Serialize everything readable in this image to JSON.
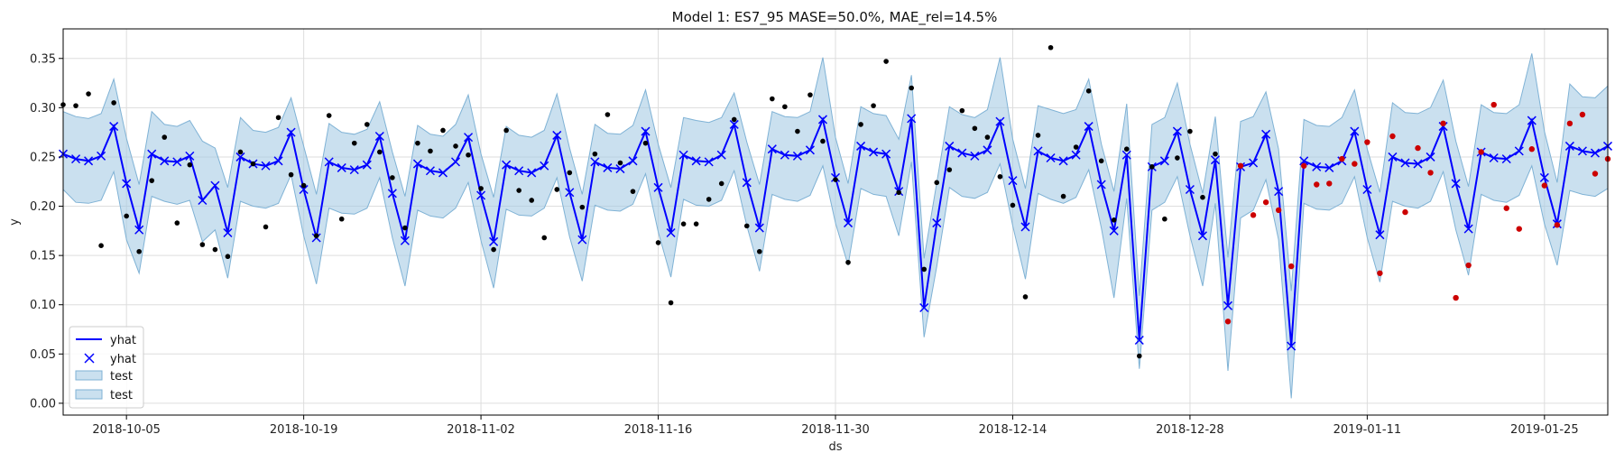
{
  "chart_data": {
    "type": "line",
    "title": "Model 1: ES7_95 MASE=50.0%, MAE_rel=14.5%",
    "xlabel": "ds",
    "ylabel": "y",
    "x_start": "2018-09-30",
    "x_end": "2019-01-30",
    "ylim": [
      -0.012,
      0.38
    ],
    "yticks": [
      0.0,
      0.05,
      0.1,
      0.15,
      0.2,
      0.25,
      0.3,
      0.35
    ],
    "ytick_labels": [
      "0.00",
      "0.05",
      "0.10",
      "0.15",
      "0.20",
      "0.25",
      "0.30",
      "0.35"
    ],
    "xticks": [
      "2018-10-05",
      "2018-10-19",
      "2018-11-02",
      "2018-11-16",
      "2018-11-30",
      "2018-12-14",
      "2018-12-28",
      "2019-01-11",
      "2019-01-25"
    ],
    "grid": true,
    "legend_position": "lower-left",
    "legend": [
      {
        "label": "yhat",
        "kind": "line"
      },
      {
        "label": "yhat",
        "kind": "marker"
      },
      {
        "label": "test",
        "kind": "band"
      },
      {
        "label": "test",
        "kind": "band"
      }
    ],
    "colors": {
      "line": "#0000ff",
      "band_fill": "#a6cce4",
      "band_edge": "#7fb2d5",
      "actual": "#000000",
      "test_point": "#cc0000",
      "grid": "#dddddd"
    },
    "forecast": {
      "name": "yhat",
      "x_start": "2018-09-30",
      "values": [
        0.253,
        0.248,
        0.246,
        0.251,
        0.281,
        0.223,
        0.176,
        0.253,
        0.246,
        0.245,
        0.251,
        0.206,
        0.221,
        0.173,
        0.25,
        0.243,
        0.241,
        0.246,
        0.275,
        0.217,
        0.168,
        0.245,
        0.239,
        0.237,
        0.242,
        0.271,
        0.213,
        0.165,
        0.243,
        0.236,
        0.234,
        0.245,
        0.27,
        0.211,
        0.164,
        0.242,
        0.236,
        0.234,
        0.241,
        0.272,
        0.214,
        0.166,
        0.245,
        0.239,
        0.238,
        0.246,
        0.276,
        0.219,
        0.173,
        0.252,
        0.246,
        0.245,
        0.252,
        0.283,
        0.224,
        0.178,
        0.258,
        0.252,
        0.251,
        0.257,
        0.288,
        0.229,
        0.183,
        0.261,
        0.255,
        0.253,
        0.215,
        0.289,
        0.097,
        0.183,
        0.261,
        0.254,
        0.251,
        0.257,
        0.286,
        0.226,
        0.179,
        0.256,
        0.249,
        0.246,
        0.252,
        0.281,
        0.222,
        0.175,
        0.252,
        0.064,
        0.24,
        0.246,
        0.276,
        0.217,
        0.17,
        0.247,
        0.099,
        0.24,
        0.244,
        0.273,
        0.215,
        0.058,
        0.246,
        0.24,
        0.239,
        0.246,
        0.276,
        0.217,
        0.171,
        0.25,
        0.244,
        0.243,
        0.25,
        0.281,
        0.223,
        0.177,
        0.255,
        0.249,
        0.248,
        0.256,
        0.287,
        0.229,
        0.182,
        0.261,
        0.256,
        0.254,
        0.261
      ]
    },
    "band": {
      "name": "test",
      "upper": [
        0.296,
        0.291,
        0.289,
        0.294,
        0.329,
        0.269,
        0.222,
        0.296,
        0.283,
        0.281,
        0.287,
        0.266,
        0.259,
        0.219,
        0.29,
        0.277,
        0.275,
        0.28,
        0.31,
        0.261,
        0.212,
        0.284,
        0.275,
        0.273,
        0.278,
        0.306,
        0.255,
        0.21,
        0.282,
        0.273,
        0.271,
        0.283,
        0.313,
        0.253,
        0.209,
        0.281,
        0.272,
        0.27,
        0.277,
        0.314,
        0.259,
        0.212,
        0.283,
        0.274,
        0.273,
        0.282,
        0.318,
        0.263,
        0.219,
        0.29,
        0.287,
        0.285,
        0.29,
        0.315,
        0.265,
        0.222,
        0.296,
        0.291,
        0.29,
        0.296,
        0.351,
        0.27,
        0.223,
        0.301,
        0.294,
        0.292,
        0.268,
        0.333,
        0.147,
        0.224,
        0.301,
        0.293,
        0.29,
        0.298,
        0.351,
        0.268,
        0.218,
        0.302,
        0.298,
        0.294,
        0.298,
        0.329,
        0.263,
        0.215,
        0.304,
        0.109,
        0.283,
        0.29,
        0.325,
        0.263,
        0.213,
        0.291,
        0.148,
        0.286,
        0.291,
        0.316,
        0.258,
        0.114,
        0.288,
        0.282,
        0.281,
        0.29,
        0.318,
        0.258,
        0.214,
        0.305,
        0.295,
        0.294,
        0.3,
        0.328,
        0.266,
        0.22,
        0.303,
        0.295,
        0.294,
        0.303,
        0.355,
        0.276,
        0.224,
        0.324,
        0.311,
        0.31,
        0.322
      ],
      "lower": [
        0.217,
        0.204,
        0.203,
        0.206,
        0.235,
        0.166,
        0.132,
        0.21,
        0.205,
        0.202,
        0.206,
        0.164,
        0.176,
        0.127,
        0.205,
        0.2,
        0.198,
        0.203,
        0.232,
        0.17,
        0.121,
        0.198,
        0.193,
        0.192,
        0.198,
        0.229,
        0.168,
        0.119,
        0.196,
        0.19,
        0.188,
        0.198,
        0.224,
        0.165,
        0.117,
        0.197,
        0.191,
        0.19,
        0.198,
        0.229,
        0.169,
        0.124,
        0.201,
        0.196,
        0.195,
        0.202,
        0.233,
        0.174,
        0.128,
        0.207,
        0.201,
        0.2,
        0.206,
        0.236,
        0.18,
        0.134,
        0.212,
        0.207,
        0.205,
        0.211,
        0.241,
        0.183,
        0.14,
        0.218,
        0.212,
        0.21,
        0.17,
        0.245,
        0.067,
        0.139,
        0.219,
        0.21,
        0.208,
        0.214,
        0.243,
        0.18,
        0.126,
        0.213,
        0.207,
        0.203,
        0.209,
        0.237,
        0.178,
        0.107,
        0.208,
        0.035,
        0.196,
        0.204,
        0.23,
        0.17,
        0.119,
        0.203,
        0.033,
        0.188,
        0.196,
        0.227,
        0.166,
        0.005,
        0.203,
        0.197,
        0.196,
        0.203,
        0.23,
        0.168,
        0.123,
        0.205,
        0.2,
        0.198,
        0.205,
        0.235,
        0.176,
        0.13,
        0.212,
        0.206,
        0.204,
        0.211,
        0.241,
        0.182,
        0.14,
        0.216,
        0.212,
        0.21,
        0.218
      ]
    },
    "actual": {
      "name": "actual",
      "points": [
        [
          "2018-09-30",
          0.303
        ],
        [
          "2018-10-01",
          0.302
        ],
        [
          "2018-10-02",
          0.314
        ],
        [
          "2018-10-03",
          0.16
        ],
        [
          "2018-10-04",
          0.305
        ],
        [
          "2018-10-05",
          0.19
        ],
        [
          "2018-10-06",
          0.154
        ],
        [
          "2018-10-07",
          0.226
        ],
        [
          "2018-10-08",
          0.27
        ],
        [
          "2018-10-09",
          0.183
        ],
        [
          "2018-10-10",
          0.242
        ],
        [
          "2018-10-11",
          0.161
        ],
        [
          "2018-10-12",
          0.156
        ],
        [
          "2018-10-13",
          0.149
        ],
        [
          "2018-10-14",
          0.255
        ],
        [
          "2018-10-15",
          0.243
        ],
        [
          "2018-10-16",
          0.179
        ],
        [
          "2018-10-17",
          0.29
        ],
        [
          "2018-10-18",
          0.232
        ],
        [
          "2018-10-19",
          0.221
        ],
        [
          "2018-10-20",
          0.17
        ],
        [
          "2018-10-21",
          0.292
        ],
        [
          "2018-10-22",
          0.187
        ],
        [
          "2018-10-23",
          0.264
        ],
        [
          "2018-10-24",
          0.283
        ],
        [
          "2018-10-25",
          0.255
        ],
        [
          "2018-10-26",
          0.229
        ],
        [
          "2018-10-27",
          0.178
        ],
        [
          "2018-10-28",
          0.264
        ],
        [
          "2018-10-29",
          0.256
        ],
        [
          "2018-10-30",
          0.277
        ],
        [
          "2018-10-31",
          0.261
        ],
        [
          "2018-11-01",
          0.252
        ],
        [
          "2018-11-02",
          0.218
        ],
        [
          "2018-11-03",
          0.156
        ],
        [
          "2018-11-04",
          0.277
        ],
        [
          "2018-11-05",
          0.216
        ],
        [
          "2018-11-06",
          0.206
        ],
        [
          "2018-11-07",
          0.168
        ],
        [
          "2018-11-08",
          0.217
        ],
        [
          "2018-11-09",
          0.234
        ],
        [
          "2018-11-10",
          0.199
        ],
        [
          "2018-11-11",
          0.253
        ],
        [
          "2018-11-12",
          0.293
        ],
        [
          "2018-11-13",
          0.244
        ],
        [
          "2018-11-14",
          0.215
        ],
        [
          "2018-11-15",
          0.264
        ],
        [
          "2018-11-16",
          0.163
        ],
        [
          "2018-11-17",
          0.102
        ],
        [
          "2018-11-18",
          0.182
        ],
        [
          "2018-11-19",
          0.182
        ],
        [
          "2018-11-20",
          0.207
        ],
        [
          "2018-11-21",
          0.223
        ],
        [
          "2018-11-22",
          0.288
        ],
        [
          "2018-11-23",
          0.18
        ],
        [
          "2018-11-24",
          0.154
        ],
        [
          "2018-11-25",
          0.309
        ],
        [
          "2018-11-26",
          0.301
        ],
        [
          "2018-11-27",
          0.276
        ],
        [
          "2018-11-28",
          0.313
        ],
        [
          "2018-11-29",
          0.266
        ],
        [
          "2018-11-30",
          0.227
        ],
        [
          "2018-12-01",
          0.143
        ],
        [
          "2018-12-02",
          0.283
        ],
        [
          "2018-12-03",
          0.302
        ],
        [
          "2018-12-04",
          0.347
        ],
        [
          "2018-12-05",
          0.214
        ],
        [
          "2018-12-06",
          0.32
        ],
        [
          "2018-12-07",
          0.136
        ],
        [
          "2018-12-08",
          0.224
        ],
        [
          "2018-12-09",
          0.237
        ],
        [
          "2018-12-10",
          0.297
        ],
        [
          "2018-12-11",
          0.279
        ],
        [
          "2018-12-12",
          0.27
        ],
        [
          "2018-12-13",
          0.23
        ],
        [
          "2018-12-14",
          0.201
        ],
        [
          "2018-12-15",
          0.108
        ],
        [
          "2018-12-16",
          0.272
        ],
        [
          "2018-12-17",
          0.361
        ],
        [
          "2018-12-18",
          0.21
        ],
        [
          "2018-12-19",
          0.26
        ],
        [
          "2018-12-20",
          0.317
        ],
        [
          "2018-12-21",
          0.246
        ],
        [
          "2018-12-22",
          0.186
        ],
        [
          "2018-12-23",
          0.258
        ],
        [
          "2018-12-24",
          0.048
        ],
        [
          "2018-12-25",
          0.24
        ],
        [
          "2018-12-26",
          0.187
        ],
        [
          "2018-12-27",
          0.249
        ],
        [
          "2018-12-28",
          0.276
        ],
        [
          "2018-12-29",
          0.209
        ],
        [
          "2018-12-30",
          0.253
        ]
      ]
    },
    "test_points": {
      "name": "test",
      "points": [
        [
          "2018-12-31",
          0.083
        ],
        [
          "2019-01-01",
          0.241
        ],
        [
          "2019-01-02",
          0.191
        ],
        [
          "2019-01-03",
          0.204
        ],
        [
          "2019-01-04",
          0.196
        ],
        [
          "2019-01-05",
          0.139
        ],
        [
          "2019-01-06",
          0.241
        ],
        [
          "2019-01-07",
          0.222
        ],
        [
          "2019-01-08",
          0.223
        ],
        [
          "2019-01-09",
          0.248
        ],
        [
          "2019-01-10",
          0.243
        ],
        [
          "2019-01-11",
          0.265
        ],
        [
          "2019-01-12",
          0.132
        ],
        [
          "2019-01-13",
          0.271
        ],
        [
          "2019-01-14",
          0.194
        ],
        [
          "2019-01-15",
          0.259
        ],
        [
          "2019-01-16",
          0.234
        ],
        [
          "2019-01-17",
          0.284
        ],
        [
          "2019-01-18",
          0.107
        ],
        [
          "2019-01-19",
          0.14
        ],
        [
          "2019-01-20",
          0.255
        ],
        [
          "2019-01-21",
          0.303
        ],
        [
          "2019-01-22",
          0.198
        ],
        [
          "2019-01-23",
          0.177
        ],
        [
          "2019-01-24",
          0.258
        ],
        [
          "2019-01-25",
          0.221
        ],
        [
          "2019-01-26",
          0.181
        ],
        [
          "2019-01-27",
          0.284
        ],
        [
          "2019-01-28",
          0.293
        ],
        [
          "2019-01-29",
          0.233
        ],
        [
          "2019-01-30",
          0.248
        ]
      ]
    }
  }
}
